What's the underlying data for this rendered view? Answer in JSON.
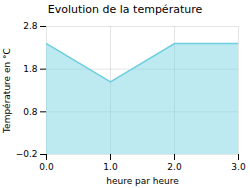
{
  "chart_data": {
    "type": "area",
    "title": "Evolution de la température",
    "xlabel": "heure par heure",
    "ylabel": "Température en °C",
    "x": [
      0,
      1,
      2,
      3
    ],
    "values": [
      2.4,
      1.5,
      2.4,
      2.4
    ],
    "xlim": [
      0,
      3
    ],
    "ylim": [
      -0.2,
      2.8
    ],
    "xticks": [
      0,
      1,
      2,
      3
    ],
    "yticks": [
      -0.2,
      0.8,
      1.8,
      2.8
    ],
    "color": "#6dcfdf",
    "grid": true
  }
}
